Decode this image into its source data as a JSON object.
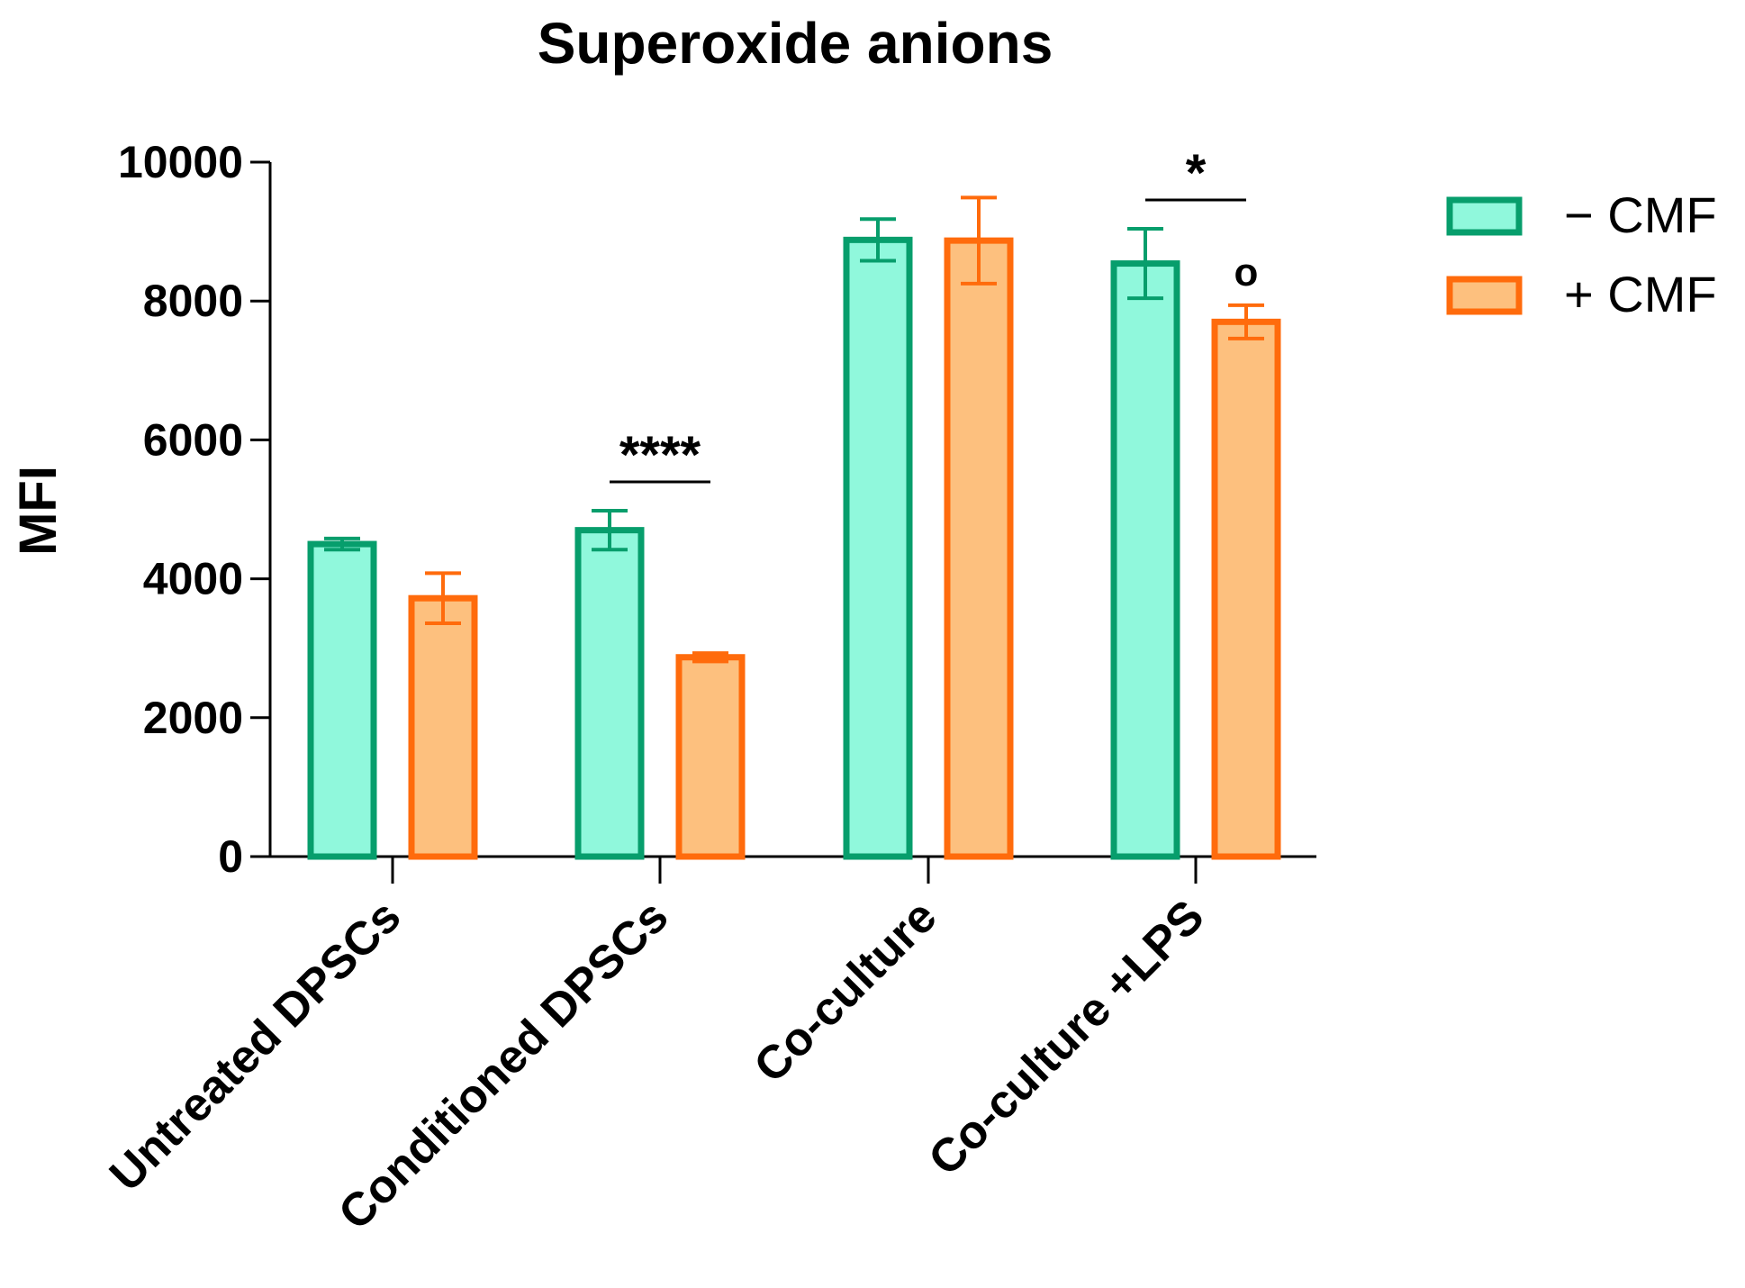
{
  "chart_data": {
    "type": "bar",
    "title": "Superoxide anions",
    "ylabel": "MFI",
    "xlabel": "",
    "ylim": [
      0,
      10000
    ],
    "yticks": [
      0,
      2000,
      4000,
      6000,
      8000,
      10000
    ],
    "categories": [
      "Untreated DPSCs",
      "Conditioned DPSCs",
      "Co-culture",
      "Co-culture +LPS"
    ],
    "series": [
      {
        "name": "− CMF",
        "fill": "#90f8dc",
        "stroke": "#079e6c",
        "values": [
          4500,
          4700,
          8880,
          8540
        ],
        "errors": [
          80,
          280,
          300,
          500
        ]
      },
      {
        "name": "+ CMF",
        "fill": "#fdc07e",
        "stroke": "#ff6b0c",
        "values": [
          3720,
          2870,
          8870,
          7700
        ],
        "errors": [
          360,
          60,
          620,
          240
        ]
      }
    ],
    "annotations": [
      {
        "category_index": 1,
        "text": "****"
      },
      {
        "category_index": 3,
        "text": "*"
      }
    ],
    "markers": [
      {
        "category_index": 3,
        "series_index": 1,
        "text": "o"
      }
    ],
    "legend_position": "top-right",
    "grid": false
  }
}
